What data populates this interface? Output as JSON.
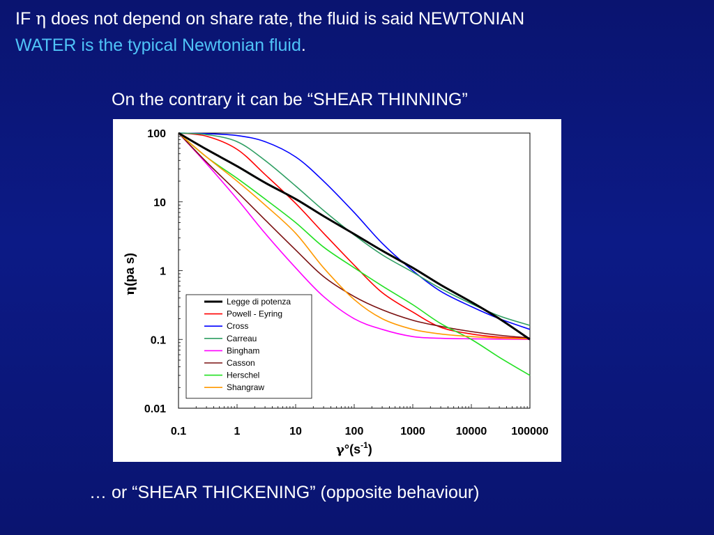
{
  "slide": {
    "line1_prefix": "IF ",
    "line1_symbol": "η",
    "line1_rest": " does not depend on share rate, the fluid is said NEWTONIAN",
    "line2_highlight": "WATER is the typical Newtonian fluid",
    "line2_end": ".",
    "line3": "On the contrary it can be “SHEAR THINNING”",
    "line4": "… or  “SHEAR THICKENING” (opposite behaviour)",
    "highlight_color": "#4fc3f7",
    "background_color": "#0c1a86"
  },
  "chart_data": {
    "type": "line",
    "title": "",
    "xlabel_symbol": "γ",
    "xlabel_text": "°(s",
    "xlabel_sup": "-1",
    "xlabel_close": ")",
    "ylabel_symbol": "η",
    "ylabel_text": "(pa s)",
    "x_scale": "log",
    "y_scale": "log",
    "xlim": [
      0.1,
      100000
    ],
    "ylim": [
      0.01,
      100
    ],
    "x_ticks": [
      0.1,
      1,
      10,
      100,
      1000,
      10000,
      100000
    ],
    "x_tick_labels": [
      "0.1",
      "1",
      "10",
      "100",
      "1000",
      "10000",
      "100000"
    ],
    "y_ticks": [
      0.01,
      0.1,
      1,
      10,
      100
    ],
    "y_tick_labels": [
      "0.01",
      "0.1",
      "1",
      "10",
      "100"
    ],
    "grid": false,
    "legend_position": "bottom-left",
    "series": [
      {
        "name": "Legge di potenza",
        "color": "#000000",
        "width": 3,
        "x": [
          0.1,
          0.3,
          1,
          3,
          10,
          30,
          100,
          300,
          1000,
          3000,
          10000,
          30000,
          100000
        ],
        "y": [
          100,
          58,
          33,
          19,
          11,
          6.2,
          3.4,
          1.95,
          1.1,
          0.62,
          0.35,
          0.2,
          0.1
        ]
      },
      {
        "name": "Powell - Eyring",
        "color": "#ff0000",
        "width": 1.6,
        "x": [
          0.1,
          0.3,
          1,
          3,
          10,
          30,
          100,
          300,
          1000,
          3000,
          10000,
          30000,
          100000
        ],
        "y": [
          100,
          90,
          58,
          25,
          9.5,
          3.5,
          1.2,
          0.48,
          0.25,
          0.15,
          0.12,
          0.108,
          0.104
        ]
      },
      {
        "name": "Cross",
        "color": "#0000ff",
        "width": 1.6,
        "x": [
          0.1,
          0.3,
          1,
          3,
          10,
          30,
          100,
          300,
          1000,
          3000,
          10000,
          30000,
          100000
        ],
        "y": [
          100,
          98,
          92,
          75,
          45,
          20,
          7,
          2.5,
          1,
          0.5,
          0.3,
          0.2,
          0.14
        ]
      },
      {
        "name": "Carreau",
        "color": "#2e9e62",
        "width": 1.6,
        "x": [
          0.1,
          0.3,
          1,
          3,
          10,
          30,
          100,
          300,
          1000,
          3000,
          10000,
          30000,
          100000
        ],
        "y": [
          100,
          95,
          75,
          40,
          17,
          7.5,
          3.3,
          1.7,
          0.95,
          0.55,
          0.33,
          0.22,
          0.16
        ]
      },
      {
        "name": "Bingham",
        "color": "#ff00ff",
        "width": 1.6,
        "x": [
          0.1,
          0.3,
          1,
          3,
          10,
          30,
          100,
          300,
          1000,
          3000,
          10000,
          30000,
          100000
        ],
        "y": [
          100,
          36,
          11,
          3.5,
          1.1,
          0.42,
          0.2,
          0.14,
          0.11,
          0.104,
          0.102,
          0.101,
          0.1
        ]
      },
      {
        "name": "Casson",
        "color": "#7a1010",
        "width": 1.6,
        "x": [
          0.1,
          0.3,
          1,
          3,
          10,
          30,
          100,
          300,
          1000,
          3000,
          10000,
          30000,
          100000
        ],
        "y": [
          100,
          38,
          14,
          5.5,
          2,
          0.82,
          0.42,
          0.27,
          0.19,
          0.155,
          0.13,
          0.115,
          0.105
        ]
      },
      {
        "name": "Herschel",
        "color": "#22e022",
        "width": 1.6,
        "x": [
          0.1,
          0.3,
          1,
          3,
          10,
          30,
          100,
          300,
          1000,
          3000,
          10000,
          30000,
          100000
        ],
        "y": [
          100,
          45,
          22,
          11,
          5,
          2.2,
          1.1,
          0.6,
          0.32,
          0.17,
          0.1,
          0.055,
          0.03
        ]
      },
      {
        "name": "Shangraw",
        "color": "#ff9900",
        "width": 1.6,
        "x": [
          0.1,
          0.3,
          1,
          3,
          10,
          30,
          100,
          300,
          1000,
          3000,
          10000,
          30000,
          100000
        ],
        "y": [
          100,
          45,
          20,
          9,
          3.5,
          1.1,
          0.38,
          0.2,
          0.14,
          0.12,
          0.11,
          0.105,
          0.102
        ]
      }
    ]
  }
}
